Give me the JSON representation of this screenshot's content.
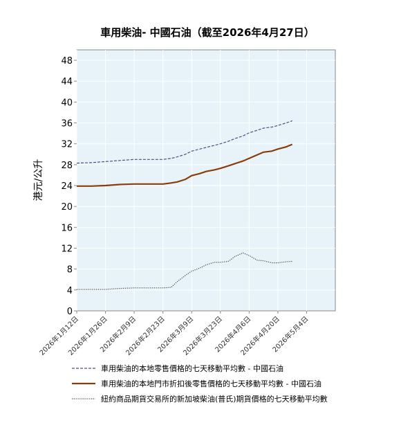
{
  "chart_data": {
    "type": "line",
    "title": "車用柴油- 中國石油（截至2026年4月27日）",
    "xlabel": "",
    "ylabel": "港元/公升",
    "ylim": [
      0,
      50
    ],
    "yticks": [
      0,
      4,
      8,
      12,
      16,
      20,
      24,
      28,
      32,
      36,
      40,
      44,
      48
    ],
    "xlim": [
      "2026-01-12",
      "2026-05-18"
    ],
    "xticks": [
      "2026年1月12日",
      "2026年1月26日",
      "2026年2月9日",
      "2026年2月23日",
      "2026年3月9日",
      "2026年3月23日",
      "2026年4月6日",
      "2026年4月20日",
      "2026年5月4日"
    ],
    "grid": true,
    "legend_position": "bottom",
    "colors": {
      "plot_background": "#e8f3f9",
      "retail": "#4a4f84",
      "discounted": "#8a3d0c",
      "futures": "#444444"
    },
    "series": [
      {
        "name": "車用柴油的本地零售價格的七天移動平均數 - 中國石油",
        "style": "dashed",
        "x": [
          "2026-01-12",
          "2026-01-19",
          "2026-01-26",
          "2026-02-02",
          "2026-02-09",
          "2026-02-16",
          "2026-02-23",
          "2026-02-27",
          "2026-03-02",
          "2026-03-06",
          "2026-03-09",
          "2026-03-13",
          "2026-03-16",
          "2026-03-20",
          "2026-03-23",
          "2026-03-27",
          "2026-03-30",
          "2026-04-03",
          "2026-04-06",
          "2026-04-10",
          "2026-04-13",
          "2026-04-17",
          "2026-04-20",
          "2026-04-24",
          "2026-04-27"
        ],
        "values": [
          28.3,
          28.4,
          28.6,
          28.8,
          29.0,
          29.0,
          29.0,
          29.2,
          29.5,
          30.0,
          30.6,
          31.0,
          31.3,
          31.7,
          32.0,
          32.5,
          33.0,
          33.5,
          34.1,
          34.6,
          35.0,
          35.2,
          35.5,
          36.0,
          36.4
        ]
      },
      {
        "name": "車用柴油的本地門市折扣後零售價格的七天移動平均數 - 中國石油",
        "style": "solid",
        "x": [
          "2026-01-12",
          "2026-01-19",
          "2026-01-26",
          "2026-02-02",
          "2026-02-09",
          "2026-02-16",
          "2026-02-23",
          "2026-02-27",
          "2026-03-02",
          "2026-03-06",
          "2026-03-09",
          "2026-03-13",
          "2026-03-16",
          "2026-03-20",
          "2026-03-23",
          "2026-03-27",
          "2026-03-30",
          "2026-04-03",
          "2026-04-06",
          "2026-04-10",
          "2026-04-13",
          "2026-04-17",
          "2026-04-20",
          "2026-04-24",
          "2026-04-27"
        ],
        "values": [
          23.9,
          23.9,
          24.0,
          24.2,
          24.3,
          24.3,
          24.3,
          24.5,
          24.7,
          25.2,
          25.9,
          26.3,
          26.7,
          27.0,
          27.3,
          27.8,
          28.2,
          28.7,
          29.2,
          29.9,
          30.4,
          30.6,
          31.0,
          31.4,
          31.9
        ]
      },
      {
        "name": "紐約商品期貨交易所的新加坡柴油(普氏)期貨價格的七天移動平均數",
        "style": "dotted",
        "x": [
          "2026-01-12",
          "2026-01-19",
          "2026-01-26",
          "2026-02-02",
          "2026-02-09",
          "2026-02-16",
          "2026-02-23",
          "2026-02-27",
          "2026-03-02",
          "2026-03-06",
          "2026-03-09",
          "2026-03-13",
          "2026-03-16",
          "2026-03-20",
          "2026-03-23",
          "2026-03-27",
          "2026-03-30",
          "2026-04-03",
          "2026-04-06",
          "2026-04-10",
          "2026-04-13",
          "2026-04-17",
          "2026-04-20",
          "2026-04-24",
          "2026-04-27"
        ],
        "values": [
          4.1,
          4.1,
          4.1,
          4.3,
          4.4,
          4.4,
          4.4,
          4.5,
          5.6,
          6.8,
          7.6,
          8.2,
          8.8,
          9.3,
          9.3,
          9.5,
          10.4,
          11.1,
          10.6,
          9.7,
          9.6,
          9.2,
          9.2,
          9.4,
          9.5
        ]
      }
    ]
  }
}
